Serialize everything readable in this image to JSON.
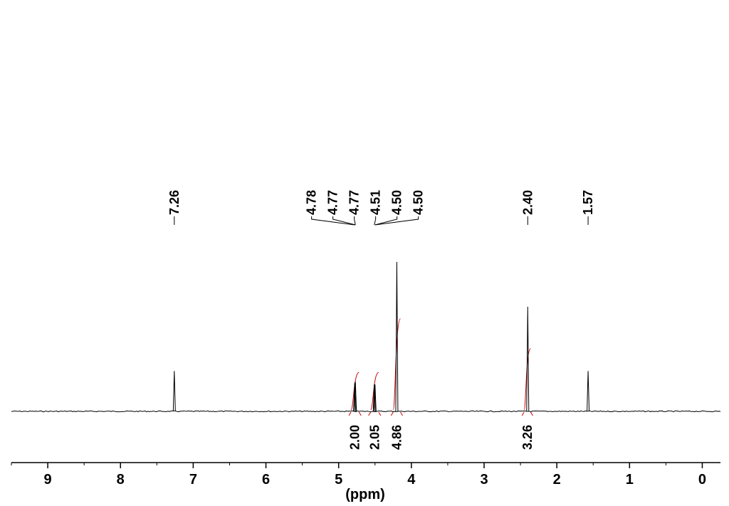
{
  "chart_data": {
    "type": "line",
    "xlabel": "(ppm)",
    "x_reversed": true,
    "xlim": [
      9.5,
      -0.25
    ],
    "ylim": [
      0,
      1
    ],
    "x_ticks": [
      "9",
      "8",
      "7",
      "6",
      "5",
      "4",
      "3",
      "2",
      "1",
      "0"
    ],
    "peaks": [
      {
        "shift": 7.26,
        "height": 0.27
      },
      {
        "shift": 4.78,
        "height": 0.19
      },
      {
        "shift": 4.77,
        "height": 0.2
      },
      {
        "shift": 4.51,
        "height": 0.18
      },
      {
        "shift": 4.5,
        "height": 0.18
      },
      {
        "shift": 4.2,
        "height": 1.0
      },
      {
        "shift": 2.4,
        "height": 0.7
      },
      {
        "shift": 1.57,
        "height": 0.27
      }
    ],
    "peak_labels": [
      {
        "text": "7.26",
        "shift": 7.26
      },
      {
        "text": "4.78",
        "shift": 4.78
      },
      {
        "text": "4.77",
        "shift": 4.77
      },
      {
        "text": "4.77",
        "shift": 4.77
      },
      {
        "text": "4.51",
        "shift": 4.51
      },
      {
        "text": "4.50",
        "shift": 4.5
      },
      {
        "text": "4.50",
        "shift": 4.5
      },
      {
        "text": "2.40",
        "shift": 2.4
      },
      {
        "text": "1.57",
        "shift": 1.57
      }
    ],
    "integrals": [
      {
        "value": "2.00",
        "from": 4.83,
        "to": 4.72,
        "rise": 0.26
      },
      {
        "value": "2.05",
        "from": 4.56,
        "to": 4.45,
        "rise": 0.26
      },
      {
        "value": "4.86",
        "from": 4.25,
        "to": 4.15,
        "rise": 0.62
      },
      {
        "value": "3.26",
        "from": 2.45,
        "to": 2.36,
        "rise": 0.42
      }
    ],
    "colors": {
      "spectrum": "#000000",
      "integral": "#cc0000"
    }
  }
}
